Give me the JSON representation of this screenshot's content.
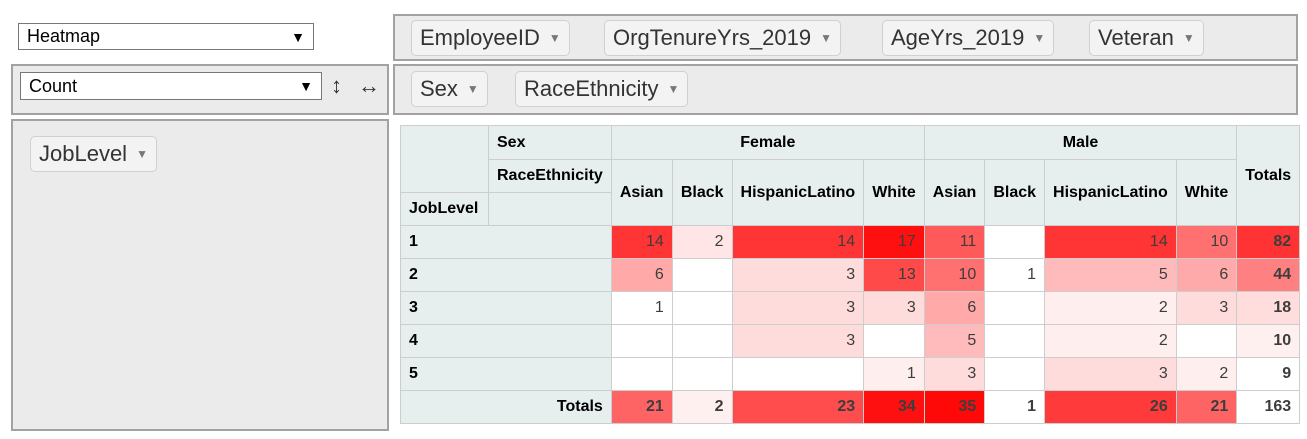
{
  "renderer": {
    "selected": "Heatmap"
  },
  "aggregator": {
    "selected": "Count"
  },
  "icons": {
    "sort_rows": "up-down-arrow-icon",
    "sort_cols": "left-right-arrow-icon"
  },
  "unused_attrs": [
    "EmployeeID",
    "OrgTenureYrs_2019",
    "AgeYrs_2019",
    "Veteran"
  ],
  "col_attrs": [
    "Sex",
    "RaceEthnicity"
  ],
  "row_attrs": [
    "JobLevel"
  ],
  "table": {
    "sex_label": "Sex",
    "race_label": "RaceEthnicity",
    "joblevel_label": "JobLevel",
    "totals_label": "Totals",
    "sexes": [
      "Female",
      "Male"
    ],
    "races": [
      "Asian",
      "Black",
      "HispanicLatino",
      "White",
      "Asian",
      "Black",
      "HispanicLatino",
      "White"
    ],
    "rows": [
      {
        "label": "1",
        "cells": [
          "14",
          "2",
          "14",
          "17",
          "11",
          "",
          "14",
          "10"
        ],
        "total": "82"
      },
      {
        "label": "2",
        "cells": [
          "6",
          "",
          "3",
          "13",
          "10",
          "1",
          "5",
          "6"
        ],
        "total": "44"
      },
      {
        "label": "3",
        "cells": [
          "1",
          "",
          "3",
          "3",
          "6",
          "",
          "2",
          "3"
        ],
        "total": "18"
      },
      {
        "label": "4",
        "cells": [
          "",
          "",
          "3",
          "",
          "5",
          "",
          "2",
          ""
        ],
        "total": "10"
      },
      {
        "label": "5",
        "cells": [
          "",
          "",
          "",
          "1",
          "3",
          "",
          "3",
          "2"
        ],
        "total": "9"
      }
    ],
    "col_totals": [
      "21",
      "2",
      "23",
      "34",
      "35",
      "1",
      "26",
      "21"
    ],
    "grand_total": "163"
  },
  "heat_colors": {
    "cells": [
      [
        "#ff3434",
        "#ffe5e5",
        "#ff3434",
        "#ff1010",
        "#ff5a5a",
        "#ffffff",
        "#ff3434",
        "#ff7070"
      ],
      [
        "#ffa9a9",
        "#ffffff",
        "#ffdcdc",
        "#ff4a4a",
        "#ff7070",
        "#ffffff",
        "#ffbbbb",
        "#ffaaaa"
      ],
      [
        "#ffffff",
        "#ffffff",
        "#ffdcdc",
        "#ffdcdc",
        "#ffa9a9",
        "#ffffff",
        "#ffeeee",
        "#ffdcdc"
      ],
      [
        "#ffffff",
        "#ffffff",
        "#ffdcdc",
        "#ffffff",
        "#ffbbbb",
        "#ffffff",
        "#ffeeee",
        "#ffffff"
      ],
      [
        "#ffffff",
        "#ffffff",
        "#ffffff",
        "#ffeeee",
        "#ffdcdc",
        "#ffffff",
        "#ffdcdc",
        "#ffeeee"
      ]
    ],
    "row_totals": [
      "#ff3333",
      "#ff8080",
      "#ffdddd",
      "#fff0f0",
      "#ffffff"
    ],
    "col_totals": [
      "#ff6464",
      "#fff0f0",
      "#ff4d4d",
      "#ff1010",
      "#ff0808",
      "#ffffff",
      "#ff3a3a",
      "#ff6464"
    ]
  }
}
